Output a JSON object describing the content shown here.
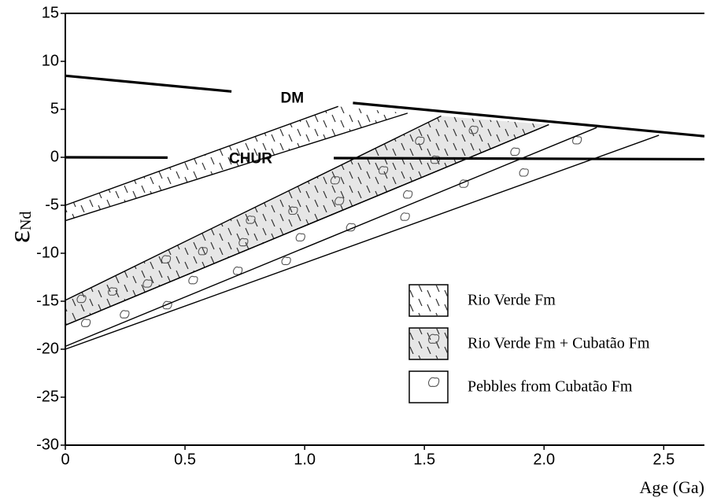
{
  "chart_data": {
    "type": "band-evolution",
    "xlabel": "Age (Ga)",
    "ylabel": "ε",
    "ylabel_sub": "Nd",
    "xlim": [
      0,
      2.67
    ],
    "ylim": [
      -30,
      15
    ],
    "xticks": [
      0,
      0.5,
      {
        "value": 1,
        "label": "1.0"
      },
      1.5,
      {
        "value": 2,
        "label": "2.0"
      },
      2.5
    ],
    "yticks": [
      15,
      10,
      5,
      0,
      -5,
      -10,
      -15,
      -20,
      -25,
      -30
    ],
    "legend_position": "lower right",
    "lines": [
      {
        "label": "DM",
        "x": [
          0,
          2.67
        ],
        "y": [
          8.5,
          2.2
        ]
      },
      {
        "label": "CHUR",
        "x": [
          0,
          2.67
        ],
        "y": [
          0,
          -0.2
        ]
      }
    ],
    "bands": [
      {
        "name": "Rio Verde Fm",
        "fill": "#ffffff",
        "hatch": true,
        "pebbles": false,
        "upper": {
          "x": [
            0,
            1.14
          ],
          "y": [
            -5,
            5.3
          ]
        },
        "lower": {
          "x": [
            0,
            1.43
          ],
          "y": [
            -6.6,
            4.6
          ]
        }
      },
      {
        "name": "Rio Verde Fm + Cubatão Fm",
        "fill": "#e6e6e6",
        "hatch": true,
        "pebbles": true,
        "upper": {
          "x": [
            0,
            1.57
          ],
          "y": [
            -14.9,
            4.3
          ]
        },
        "lower": {
          "x": [
            0,
            2.02
          ],
          "y": [
            -17.5,
            3.4
          ]
        }
      },
      {
        "name": "Pebbles from Cubatão Fm",
        "fill": "#ffffff",
        "hatch": false,
        "pebbles": true,
        "upper": {
          "x": [
            0,
            2.02
          ],
          "y": [
            -17.5,
            3.4
          ]
        },
        "lower": {
          "x": [
            0,
            2.48
          ],
          "y": [
            -20,
            2.3
          ]
        },
        "inner": {
          "x": [
            0,
            2.22
          ],
          "y": [
            -19.7,
            3.1
          ]
        }
      }
    ]
  }
}
